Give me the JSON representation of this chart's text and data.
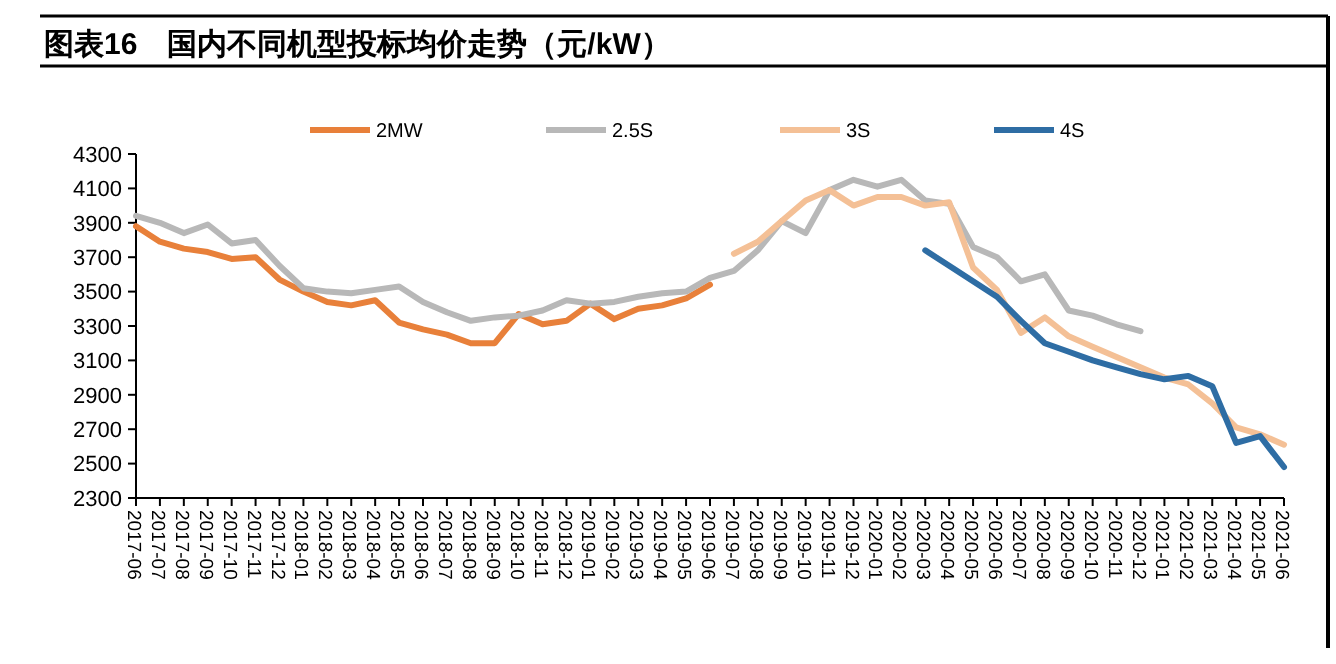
{
  "chart_data": {
    "type": "line",
    "title": "图表16　国内不同机型投标均价走势（元/kW）",
    "categories": [
      "2017-06",
      "2017-07",
      "2017-08",
      "2017-09",
      "2017-10",
      "2017-11",
      "2017-12",
      "2018-01",
      "2018-02",
      "2018-03",
      "2018-04",
      "2018-05",
      "2018-06",
      "2018-07",
      "2018-08",
      "2018-09",
      "2018-10",
      "2018-11",
      "2018-12",
      "2019-01",
      "2019-02",
      "2019-03",
      "2019-04",
      "2019-05",
      "2019-06",
      "2019-07",
      "2019-08",
      "2019-09",
      "2019-10",
      "2019-11",
      "2019-12",
      "2020-01",
      "2020-02",
      "2020-03",
      "2020-04",
      "2020-05",
      "2020-06",
      "2020-07",
      "2020-08",
      "2020-09",
      "2020-10",
      "2020-11",
      "2020-12",
      "2021-01",
      "2021-02",
      "2021-03",
      "2021-04",
      "2021-05",
      "2021-06"
    ],
    "series": [
      {
        "name": "2MW",
        "color": "#e8803a",
        "values": [
          3880,
          3790,
          3750,
          3730,
          3690,
          3700,
          3570,
          3500,
          3440,
          3420,
          3450,
          3320,
          3280,
          3250,
          3200,
          3200,
          3370,
          3310,
          3330,
          3430,
          3340,
          3400,
          3420,
          3460,
          3540,
          null,
          null,
          null,
          null,
          null,
          null,
          null,
          null,
          null,
          null,
          null,
          null,
          null,
          null,
          null,
          null,
          null,
          null,
          null,
          null,
          null,
          null,
          null,
          null
        ]
      },
      {
        "name": "2.5S",
        "color": "#b8b8b8",
        "values": [
          3940,
          3900,
          3840,
          3890,
          3780,
          3800,
          3650,
          3520,
          3500,
          3490,
          3510,
          3530,
          3440,
          3380,
          3330,
          3350,
          3360,
          3390,
          3450,
          3430,
          3440,
          3470,
          3490,
          3500,
          3580,
          3620,
          3740,
          3910,
          3840,
          4090,
          4150,
          4110,
          4150,
          4030,
          4010,
          3760,
          3700,
          3560,
          3600,
          3390,
          3360,
          3310,
          3270,
          null,
          null,
          null,
          null,
          null,
          null
        ]
      },
      {
        "name": "3S",
        "color": "#f4c096",
        "values": [
          null,
          null,
          null,
          null,
          null,
          null,
          null,
          null,
          null,
          null,
          null,
          null,
          null,
          null,
          null,
          null,
          null,
          null,
          null,
          null,
          null,
          null,
          null,
          null,
          null,
          3720,
          3790,
          3910,
          4030,
          4090,
          4000,
          4050,
          4050,
          4000,
          4020,
          3640,
          3510,
          3260,
          3350,
          3240,
          3180,
          3120,
          3060,
          3000,
          2960,
          2850,
          2710,
          2670,
          2610
        ]
      },
      {
        "name": "4S",
        "color": "#2e6da4",
        "values": [
          null,
          null,
          null,
          null,
          null,
          null,
          null,
          null,
          null,
          null,
          null,
          null,
          null,
          null,
          null,
          null,
          null,
          null,
          null,
          null,
          null,
          null,
          null,
          null,
          null,
          null,
          null,
          null,
          null,
          null,
          null,
          null,
          null,
          3740,
          3650,
          3560,
          3470,
          3330,
          3200,
          3150,
          3100,
          3060,
          3020,
          2990,
          3010,
          2950,
          2620,
          2660,
          2480
        ]
      }
    ],
    "ylim": [
      2300,
      4300
    ],
    "yticks": [
      2300,
      2500,
      2700,
      2900,
      3100,
      3300,
      3500,
      3700,
      3900,
      4100,
      4300
    ],
    "grid": false,
    "legend": "top",
    "line_style": "solid",
    "marker": "none"
  }
}
